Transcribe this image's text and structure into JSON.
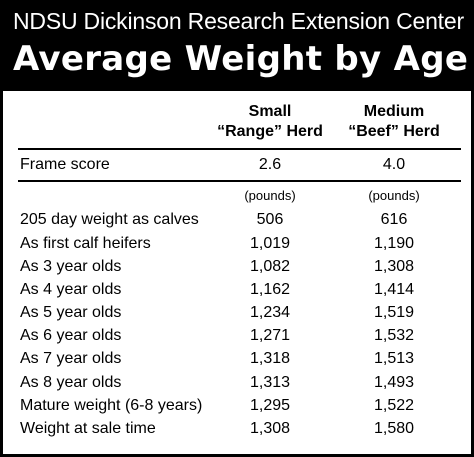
{
  "header": {
    "subtitle": "NDSU Dickinson Research Extension Center",
    "title": "Average Weight by Age"
  },
  "columns": [
    {
      "line1": "Small",
      "line2": "“Range” Herd"
    },
    {
      "line1": "Medium",
      "line2": "“Beef” Herd"
    }
  ],
  "frame_score": {
    "label": "Frame score",
    "values": [
      "2.6",
      "4.0"
    ]
  },
  "units": [
    "(pounds)",
    "(pounds)"
  ],
  "rows": [
    {
      "label": "205 day weight as calves",
      "values": [
        "506",
        "616"
      ]
    },
    {
      "label": "As first calf heifers",
      "values": [
        "1,019",
        "1,190"
      ]
    },
    {
      "label": "As 3 year olds",
      "values": [
        "1,082",
        "1,308"
      ]
    },
    {
      "label": "As 4 year olds",
      "values": [
        "1,162",
        "1,414"
      ]
    },
    {
      "label": "As 5 year olds",
      "values": [
        "1,234",
        "1,519"
      ]
    },
    {
      "label": "As 6 year olds",
      "values": [
        "1,271",
        "1,532"
      ]
    },
    {
      "label": "As 7 year olds",
      "values": [
        "1,318",
        "1,513"
      ]
    },
    {
      "label": "As 8 year olds",
      "values": [
        "1,313",
        "1,493"
      ]
    },
    {
      "label": "Mature weight (6-8 years)",
      "values": [
        "1,295",
        "1,522"
      ]
    },
    {
      "label": "Weight at sale time",
      "values": [
        "1,308",
        "1,580"
      ]
    }
  ]
}
